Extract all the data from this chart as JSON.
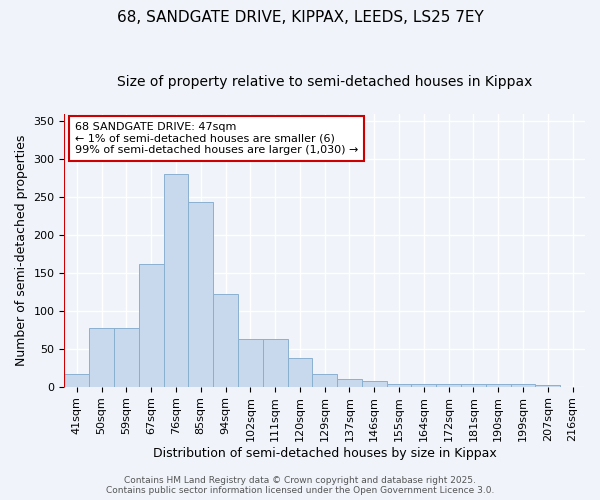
{
  "title": "68, SANDGATE DRIVE, KIPPAX, LEEDS, LS25 7EY",
  "subtitle": "Size of property relative to semi-detached houses in Kippax",
  "xlabel": "Distribution of semi-detached houses by size in Kippax",
  "ylabel": "Number of semi-detached properties",
  "annotation_title": "68 SANDGATE DRIVE: 47sqm",
  "annotation_line1": "← 1% of semi-detached houses are smaller (6)",
  "annotation_line2": "99% of semi-detached houses are larger (1,030) →",
  "bar_color": "#c8d8ed",
  "bar_edge_color": "#8ab0d0",
  "vline_color": "#cc0000",
  "annotation_box_color": "#ffffff",
  "annotation_box_edge": "#cc0000",
  "categories": [
    "41sqm",
    "50sqm",
    "59sqm",
    "67sqm",
    "76sqm",
    "85sqm",
    "94sqm",
    "102sqm",
    "111sqm",
    "120sqm",
    "129sqm",
    "137sqm",
    "146sqm",
    "155sqm",
    "164sqm",
    "172sqm",
    "181sqm",
    "190sqm",
    "199sqm",
    "207sqm",
    "216sqm"
  ],
  "values": [
    17,
    78,
    78,
    162,
    280,
    243,
    122,
    63,
    63,
    38,
    17,
    10,
    8,
    3,
    3,
    3,
    3,
    3,
    3,
    2,
    0
  ],
  "ylim": [
    0,
    360
  ],
  "yticks": [
    0,
    50,
    100,
    150,
    200,
    250,
    300,
    350
  ],
  "bg_color": "#f0f4fa",
  "plot_bg_color": "#f0f4fa",
  "grid_color": "#ffffff",
  "title_fontsize": 11,
  "subtitle_fontsize": 10,
  "tick_fontsize": 8,
  "label_fontsize": 9,
  "footer_text": "Contains HM Land Registry data © Crown copyright and database right 2025.\nContains public sector information licensed under the Open Government Licence 3.0."
}
